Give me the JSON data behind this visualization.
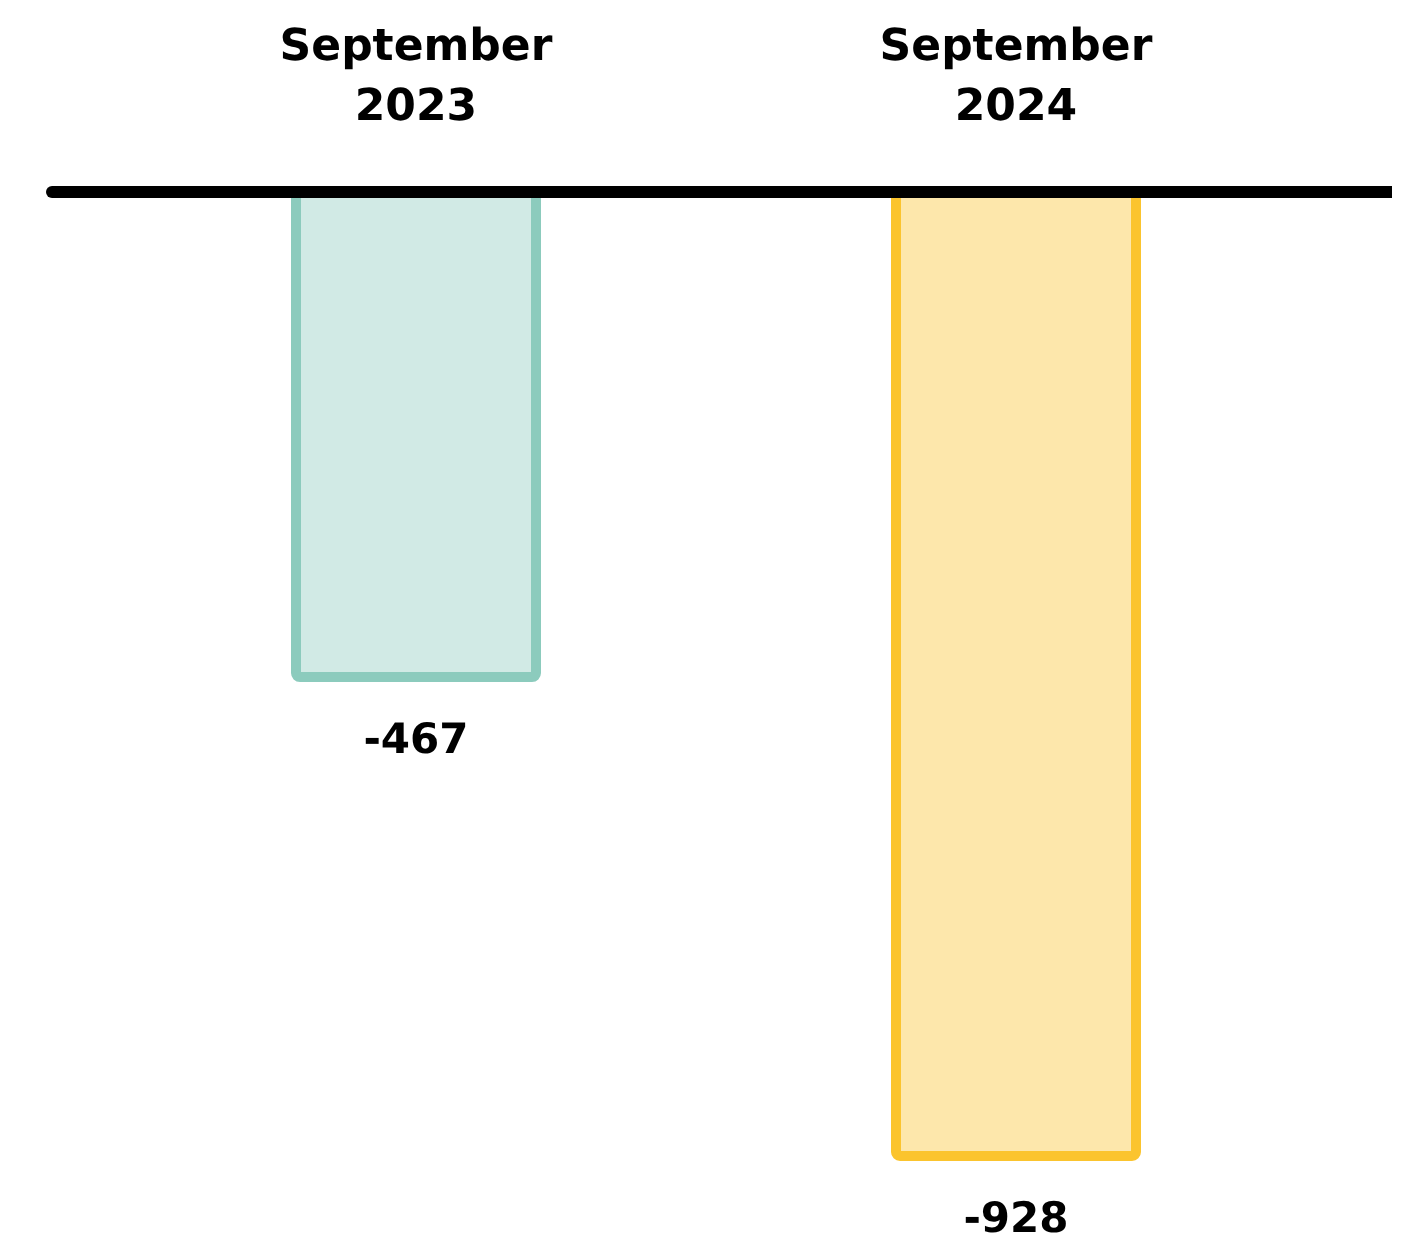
{
  "chart_data": {
    "type": "bar",
    "categories": [
      "September 2023",
      "September 2024"
    ],
    "values": [
      -467,
      -928
    ],
    "colors": [
      "#8ccbbd",
      "#fbc42e"
    ],
    "data_labels": true
  }
}
